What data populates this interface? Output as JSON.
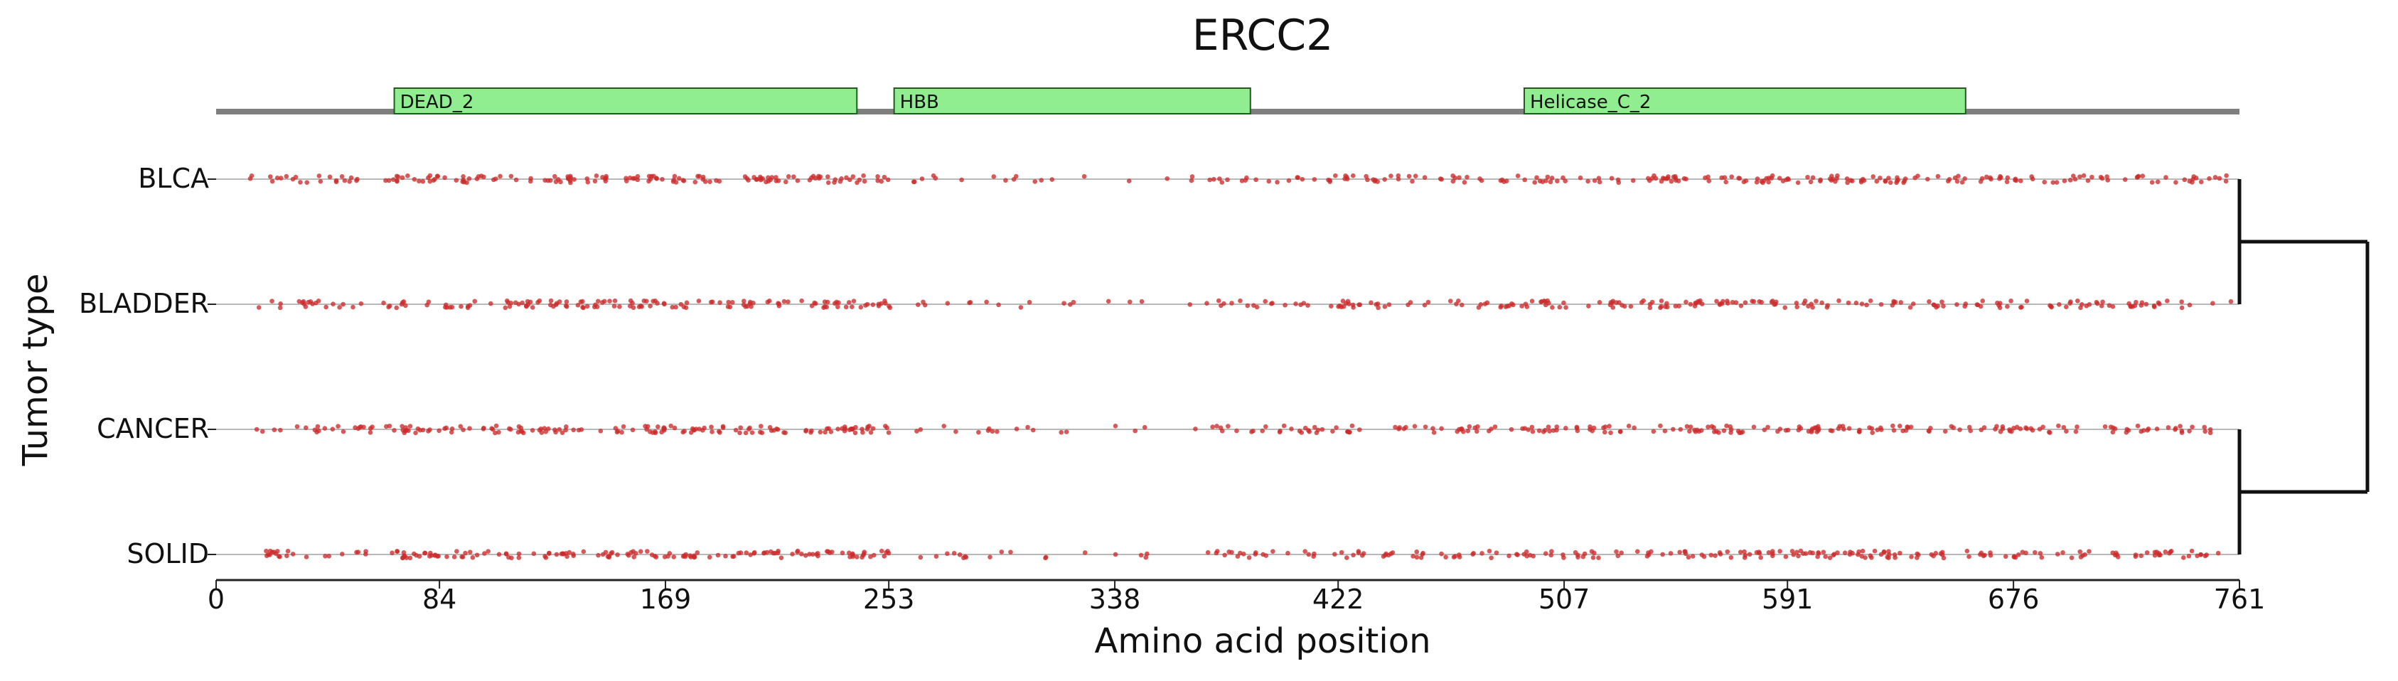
{
  "chart_data": {
    "type": "scatter",
    "title": "ERCC2",
    "xlabel": "Amino acid position",
    "ylabel": "Tumor type",
    "xlim": [
      0,
      761
    ],
    "x_ticks": [
      0,
      84,
      169,
      253,
      338,
      422,
      507,
      591,
      676,
      761
    ],
    "categories": [
      "BLCA",
      "BLADDER",
      "CANCER",
      "SOLID"
    ],
    "point_color": "#cc2a2a",
    "track_line_color": "#b9b9b9",
    "domain_fill": "#90ee90",
    "domain_stroke": "#1a5f1a",
    "protein_backbone_color": "#7f7f7f",
    "domains": [
      {
        "label": "DEAD_2",
        "start": 67,
        "end": 241
      },
      {
        "label": "HBB",
        "start": 255,
        "end": 389
      },
      {
        "label": "Helicase_C_2",
        "start": 492,
        "end": 658
      }
    ],
    "series": [
      {
        "name": "BLCA",
        "segments": [
          {
            "start": 12,
            "end": 60,
            "count": 22
          },
          {
            "start": 62,
            "end": 140,
            "count": 55
          },
          {
            "start": 142,
            "end": 255,
            "count": 85
          },
          {
            "start": 262,
            "end": 330,
            "count": 14
          },
          {
            "start": 332,
            "end": 372,
            "count": 4
          },
          {
            "start": 372,
            "end": 470,
            "count": 46
          },
          {
            "start": 470,
            "end": 660,
            "count": 120
          },
          {
            "start": 662,
            "end": 758,
            "count": 52
          }
        ]
      },
      {
        "name": "BLADDER",
        "segments": [
          {
            "start": 12,
            "end": 60,
            "count": 20
          },
          {
            "start": 62,
            "end": 140,
            "count": 52
          },
          {
            "start": 142,
            "end": 255,
            "count": 82
          },
          {
            "start": 262,
            "end": 330,
            "count": 13
          },
          {
            "start": 332,
            "end": 372,
            "count": 4
          },
          {
            "start": 372,
            "end": 470,
            "count": 44
          },
          {
            "start": 470,
            "end": 660,
            "count": 116
          },
          {
            "start": 662,
            "end": 758,
            "count": 50
          }
        ]
      },
      {
        "name": "CANCER",
        "segments": [
          {
            "start": 12,
            "end": 60,
            "count": 22
          },
          {
            "start": 62,
            "end": 140,
            "count": 56
          },
          {
            "start": 142,
            "end": 255,
            "count": 86
          },
          {
            "start": 262,
            "end": 330,
            "count": 14
          },
          {
            "start": 332,
            "end": 372,
            "count": 4
          },
          {
            "start": 372,
            "end": 470,
            "count": 46
          },
          {
            "start": 470,
            "end": 660,
            "count": 120
          },
          {
            "start": 662,
            "end": 758,
            "count": 52
          }
        ]
      },
      {
        "name": "SOLID",
        "segments": [
          {
            "start": 12,
            "end": 60,
            "count": 22
          },
          {
            "start": 62,
            "end": 140,
            "count": 56
          },
          {
            "start": 142,
            "end": 255,
            "count": 86
          },
          {
            "start": 262,
            "end": 330,
            "count": 14
          },
          {
            "start": 332,
            "end": 372,
            "count": 4
          },
          {
            "start": 372,
            "end": 470,
            "count": 46
          },
          {
            "start": 470,
            "end": 660,
            "count": 120
          },
          {
            "start": 662,
            "end": 758,
            "count": 52
          }
        ]
      }
    ],
    "dendrogram": {
      "clusters": [
        [
          "BLCA",
          "BLADDER"
        ],
        [
          "CANCER",
          "SOLID"
        ]
      ]
    }
  }
}
